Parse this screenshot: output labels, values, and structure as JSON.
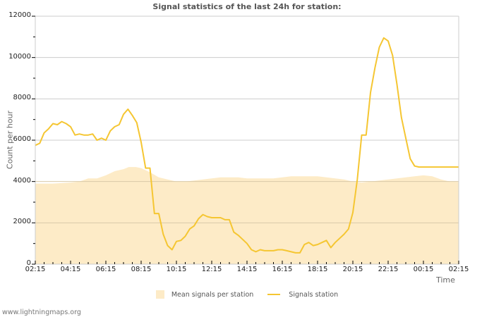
{
  "header": {
    "title": "Signal statistics of the last 24h for station:"
  },
  "footer": {
    "site": "www.lightningmaps.org"
  },
  "legend": {
    "items": [
      {
        "label": "Mean signals per station",
        "kind": "area",
        "color": "#fdebc7"
      },
      {
        "label": "Signals station",
        "kind": "line",
        "color": "#f5c632"
      }
    ]
  },
  "axes": {
    "xlabel": "Time",
    "ylabel": "Count per hour",
    "xticks": [
      "02:15",
      "04:15",
      "06:15",
      "08:15",
      "10:15",
      "12:15",
      "14:15",
      "16:15",
      "18:15",
      "20:15",
      "22:15",
      "00:15",
      "02:15"
    ],
    "yticks": [
      "0",
      "2000",
      "4000",
      "6000",
      "8000",
      "10000",
      "12000"
    ]
  },
  "colors": {
    "area_fill": "#fdebc7",
    "line": "#f5c632",
    "grid": "#cccccc",
    "grid_over_area": "#d9c9a8",
    "axis": "#cccccc"
  },
  "chart_data": {
    "type": "line",
    "title": "Signal statistics of the last 24h for station:",
    "xlabel": "Time",
    "ylabel": "Count per hour",
    "ylim": [
      0,
      12000
    ],
    "xlim_hours": [
      0,
      24
    ],
    "x_tick_labels": [
      "02:15",
      "04:15",
      "06:15",
      "08:15",
      "10:15",
      "12:15",
      "14:15",
      "16:15",
      "18:15",
      "20:15",
      "22:15",
      "00:15",
      "02:15"
    ],
    "grid": true,
    "legend_position": "bottom",
    "series": [
      {
        "name": "Mean signals per station",
        "kind": "area",
        "x_hours": [
          0,
          1,
          2,
          2.5,
          3,
          3.5,
          4,
          4.5,
          5,
          5.3,
          5.7,
          6,
          6.5,
          7,
          7.5,
          8,
          8.5,
          9,
          9.5,
          10,
          10.5,
          11,
          11.5,
          12,
          12.5,
          13,
          13.5,
          14,
          14.5,
          15,
          15.5,
          16,
          16.5,
          17,
          17.5,
          18,
          18.5,
          19,
          19.5,
          20,
          20.5,
          21,
          21.5,
          22,
          22.5,
          23,
          23.5,
          24
        ],
        "values": [
          3900,
          3900,
          3950,
          4000,
          4150,
          4150,
          4300,
          4500,
          4600,
          4700,
          4700,
          4650,
          4450,
          4200,
          4100,
          4000,
          4000,
          4050,
          4100,
          4150,
          4200,
          4200,
          4200,
          4150,
          4150,
          4150,
          4150,
          4200,
          4250,
          4250,
          4250,
          4250,
          4200,
          4150,
          4100,
          4000,
          3950,
          4000,
          4050,
          4100,
          4150,
          4200,
          4250,
          4300,
          4250,
          4100,
          4000,
          3980
        ]
      },
      {
        "name": "Signals station",
        "kind": "line",
        "x_hours": [
          0,
          0.25,
          0.5,
          0.75,
          1.0,
          1.25,
          1.5,
          1.75,
          2.0,
          2.25,
          2.5,
          2.75,
          3.0,
          3.25,
          3.5,
          3.75,
          4.0,
          4.25,
          4.5,
          4.75,
          5.0,
          5.25,
          5.5,
          5.75,
          6.0,
          6.25,
          6.5,
          6.75,
          7.0,
          7.25,
          7.5,
          7.75,
          8.0,
          8.25,
          8.5,
          8.75,
          9.0,
          9.25,
          9.5,
          9.75,
          10.0,
          10.25,
          10.5,
          10.75,
          11.0,
          11.25,
          11.5,
          11.75,
          12.0,
          12.25,
          12.5,
          12.75,
          13.0,
          13.25,
          13.5,
          13.75,
          14.0,
          14.25,
          14.5,
          14.75,
          15.0,
          15.25,
          15.5,
          15.75,
          16.0,
          16.25,
          16.5,
          16.75,
          17.0,
          17.25,
          17.5,
          17.75,
          18.0,
          18.25,
          18.5,
          18.75,
          19.0,
          19.25,
          19.5,
          19.75,
          20.0,
          20.25,
          20.5,
          20.75,
          21.0,
          21.25,
          21.5,
          21.75,
          22.0,
          22.25,
          22.5,
          22.75,
          23.0,
          23.25,
          23.5,
          23.75,
          24.0
        ],
        "values": [
          5750,
          5850,
          6350,
          6550,
          6800,
          6750,
          6900,
          6800,
          6650,
          6250,
          6300,
          6250,
          6250,
          6300,
          6000,
          6100,
          6000,
          6450,
          6650,
          6750,
          7250,
          7500,
          7200,
          6850,
          5900,
          4650,
          4650,
          2450,
          2450,
          1450,
          900,
          700,
          1100,
          1150,
          1350,
          1700,
          1850,
          2200,
          2400,
          2300,
          2250,
          2250,
          2250,
          2150,
          2150,
          1550,
          1400,
          1200,
          1000,
          700,
          600,
          700,
          650,
          650,
          650,
          700,
          700,
          650,
          600,
          550,
          550,
          950,
          1050,
          900,
          950,
          1050,
          1150,
          800,
          1050,
          1250,
          1450,
          1700,
          2500,
          4100,
          6250,
          6250,
          8300,
          9500,
          10500,
          10950,
          10800,
          10100,
          8700,
          7100,
          6100,
          5100,
          4750,
          4700,
          4700,
          4700,
          4700,
          4700,
          4700,
          4700,
          4700,
          4700,
          4700
        ]
      }
    ]
  }
}
